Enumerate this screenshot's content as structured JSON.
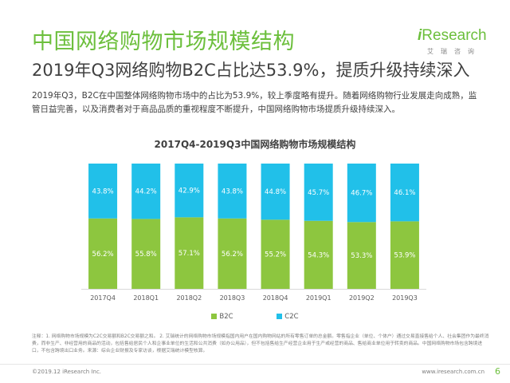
{
  "header": {
    "title": "中国网络购物市场规模结构",
    "subtitle": "2019年Q3网络购物B2C占比达53.9%，提质升级持续深入"
  },
  "logo": {
    "mark": "i",
    "word": "Research",
    "cn": "艾瑞咨询"
  },
  "summary": "2019年Q3，B2C在中国整体网络购物市场中的占比为53.9%，较上季度略有提升。随着网络购物行业发展走向成熟，监管日益完善，以及消费者对于商品品质的重视程度不断提升，中国网络购物市场提质升级持续深入。",
  "chart_data": {
    "type": "bar",
    "stacked": true,
    "percent_stacked": true,
    "title": "2017Q4-2019Q3中国网络购物市场规模结构",
    "categories": [
      "2017Q4",
      "2018Q1",
      "2018Q2",
      "2018Q3",
      "2018Q4",
      "2019Q1",
      "2019Q2",
      "2019Q3"
    ],
    "series": [
      {
        "name": "B2C",
        "color": "#8dc63f",
        "values": [
          56.2,
          55.8,
          57.1,
          56.2,
          55.2,
          54.3,
          53.3,
          53.9
        ],
        "labels": [
          "56.2%",
          "55.8%",
          "57.1%",
          "56.2%",
          "55.2%",
          "54.3%",
          "53.3%",
          "53.9%"
        ]
      },
      {
        "name": "C2C",
        "color": "#21c0e9",
        "values": [
          43.8,
          44.2,
          42.9,
          43.8,
          44.8,
          45.7,
          46.7,
          46.1
        ],
        "labels": [
          "43.8%",
          "44.2%",
          "42.9%",
          "43.8%",
          "44.8%",
          "45.7%",
          "46.7%",
          "46.1%"
        ]
      }
    ],
    "ylim": [
      0,
      100
    ],
    "grid": false,
    "legend": "bottom"
  },
  "footnote": "注释：1. 网络购物市场规模为C2C交易额和B2C交易额之和。 2. 艾瑞统计的网络购物市场规模指国内用户在国内购物网站的所有零售订单的总金额。零售指企业（单位、个体户）通过交易直接售给个人、社会集团作为最终消费，而非生产、非经营用的商品的活动，包括售给居民个人和企事业单位的生活和公共消费（如办公用品），但不包括售给生产经营企业用于生产或经营的商品、售给商业单位用于转卖的商品。中国网络购物市场包含跨境进口，不包含跨境出口业务。来源：综合企业财报及专家访谈，根据艾瑞统计模型核算。",
  "footer": {
    "copyright": "©2019.12 iResearch Inc.",
    "website": "www.iresearch.com.cn",
    "page": "6"
  }
}
